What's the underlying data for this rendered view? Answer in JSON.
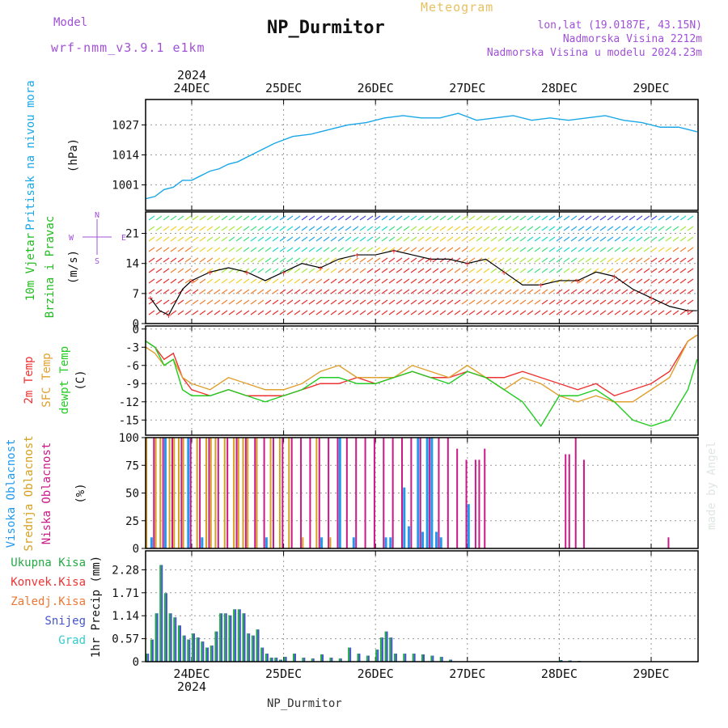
{
  "header": {
    "title": "NP_Durmitor",
    "subtitle": "Meteogram",
    "model_label": "Model",
    "model_name": "wrf-nmm_v3.9.1 e1km",
    "location": "lon,lat (19.0187E, 43.15N)",
    "elevation": "Nadmorska Visina 2212m",
    "model_elevation": "Nadmorska Visina u modelu 2024.23m",
    "footer": "NP_Durmitor",
    "watermark": "made by Angel",
    "year": "2024",
    "dates": [
      "24DEC",
      "25DEC",
      "26DEC",
      "27DEC",
      "28DEC",
      "29DEC"
    ]
  },
  "colors": {
    "pressure": "#1aa7e8",
    "temp2m": "#ee3333",
    "sfc": "#e0a030",
    "dew": "#22cc22",
    "wind_label": "#22bb22",
    "cloud_high": "#2299ee",
    "cloud_mid": "#d6a020",
    "cloud_low": "#cc1888",
    "precip_total": "#22aa44",
    "precip_snow": "#4455cc",
    "precip_conv": "#ee3333",
    "precip_frz": "#ee7733",
    "precip_grad": "#33cccc",
    "model": "#a050d8",
    "subtitle": "#e8c060"
  },
  "chart_data": [
    {
      "type": "line",
      "ylabel": [
        "Pritisak na nivou mora",
        "(hPa)"
      ],
      "yticks": [
        1001,
        1014,
        1027
      ],
      "ylim": [
        990,
        1038
      ],
      "x": [
        -0.5,
        -0.4,
        -0.3,
        -0.2,
        -0.1,
        0,
        0.1,
        0.2,
        0.3,
        0.4,
        0.5,
        0.7,
        0.9,
        1.1,
        1.3,
        1.5,
        1.7,
        1.9,
        2.1,
        2.3,
        2.5,
        2.7,
        2.9,
        3.1,
        3.3,
        3.5,
        3.7,
        3.9,
        4.1,
        4.3,
        4.5,
        4.7,
        4.9,
        5.1,
        5.3,
        5.5
      ],
      "series": [
        {
          "values": [
            995,
            996,
            999,
            1000,
            1003,
            1003,
            1005,
            1007,
            1008,
            1010,
            1011,
            1015,
            1019,
            1022,
            1023,
            1025,
            1027,
            1028,
            1030,
            1031,
            1030,
            1030,
            1032,
            1029,
            1030,
            1031,
            1029,
            1030,
            1029,
            1030,
            1031,
            1029,
            1028,
            1026,
            1026,
            1024
          ]
        }
      ]
    },
    {
      "type": "line",
      "ylabel": [
        "10m Vjetar",
        "Brzina i Pravac",
        "(m/s)"
      ],
      "compass": [
        "N",
        "E",
        "S",
        "W"
      ],
      "yticks": [
        0,
        7,
        14,
        21
      ],
      "ylim": [
        0,
        26
      ],
      "x": [
        -0.45,
        -0.35,
        -0.25,
        -0.1,
        0,
        0.1,
        0.2,
        0.4,
        0.6,
        0.8,
        1,
        1.2,
        1.4,
        1.6,
        1.8,
        2,
        2.2,
        2.4,
        2.6,
        2.8,
        3,
        3.2,
        3.4,
        3.6,
        3.8,
        4,
        4.2,
        4.4,
        4.6,
        4.8,
        5,
        5.2,
        5.4,
        5.5
      ],
      "series": [
        {
          "values": [
            6,
            3,
            2,
            8,
            10,
            11,
            12,
            13,
            12,
            10,
            12,
            14,
            13,
            15,
            16,
            16,
            17,
            16,
            15,
            15,
            14,
            15,
            12,
            9,
            9,
            10,
            10,
            12,
            11,
            8,
            6,
            4,
            3,
            3
          ]
        }
      ]
    },
    {
      "type": "line",
      "ylabel": [
        "2m Temp",
        "SFC Temp",
        "dewpt Temp",
        "(C)"
      ],
      "yticks": [
        0,
        -3,
        -6,
        -9,
        -12,
        -15
      ],
      "ylim": [
        -17.5,
        0.5
      ],
      "x": [
        -0.5,
        -0.4,
        -0.3,
        -0.2,
        -0.1,
        0,
        0.2,
        0.4,
        0.6,
        0.8,
        1,
        1.2,
        1.4,
        1.6,
        1.8,
        2,
        2.2,
        2.4,
        2.6,
        2.8,
        3,
        3.2,
        3.4,
        3.6,
        3.8,
        4,
        4.2,
        4.4,
        4.6,
        4.8,
        5,
        5.2,
        5.4,
        5.5
      ],
      "series": [
        {
          "name": "2m Temp",
          "values": [
            -2,
            -3,
            -5,
            -4,
            -8,
            -10,
            -11,
            -10,
            -11,
            -11,
            -11,
            -10,
            -9,
            -9,
            -8,
            -9,
            -8,
            -7,
            -8,
            -8,
            -7,
            -8,
            -8,
            -7,
            -8,
            -9,
            -10,
            -9,
            -11,
            -10,
            -9,
            -7,
            -2,
            -1
          ]
        },
        {
          "name": "SFC Temp",
          "values": [
            -3,
            -4,
            -6,
            -5,
            -8,
            -9,
            -10,
            -8,
            -9,
            -10,
            -10,
            -9,
            -7,
            -6,
            -8,
            -8,
            -8,
            -6,
            -7,
            -8,
            -6,
            -8,
            -10,
            -8,
            -9,
            -11,
            -12,
            -11,
            -12,
            -12,
            -10,
            -8,
            -2,
            -1
          ]
        },
        {
          "name": "dewpt Temp",
          "values": [
            -2,
            -3,
            -6,
            -5,
            -10,
            -11,
            -11,
            -10,
            -11,
            -12,
            -11,
            -10,
            -8,
            -8,
            -9,
            -9,
            -8,
            -7,
            -8,
            -9,
            -7,
            -8,
            -10,
            -12,
            -16,
            -11,
            -11,
            -10,
            -12,
            -15,
            -16,
            -15,
            -10,
            -5
          ]
        }
      ]
    },
    {
      "type": "bar",
      "ylabel": [
        "Visoka Oblacnost",
        "Srednja Oblacnost",
        "Niska Oblacnost",
        "(%)"
      ],
      "yticks": [
        0,
        25,
        50,
        75,
        100
      ],
      "ylim": [
        0,
        100
      ],
      "series": [
        {
          "name": "Visoka Oblacnost",
          "x": [
            -0.45,
            -0.3,
            -0.05,
            0.1,
            0.8,
            1.4,
            1.6,
            1.75,
            2.1,
            2.15,
            2.3,
            2.35,
            2.45,
            2.5,
            2.55,
            2.6,
            2.65,
            2.7,
            3.0
          ],
          "values": [
            10,
            100,
            100,
            10,
            10,
            10,
            100,
            10,
            10,
            10,
            55,
            20,
            100,
            15,
            100,
            100,
            15,
            10,
            40
          ]
        },
        {
          "name": "Srednja Oblacnost",
          "x": [
            -0.5,
            -0.4,
            -0.35,
            -0.25,
            -0.2,
            -0.15,
            -0.1,
            0.05,
            0.15,
            0.2,
            0.25,
            0.35,
            0.45,
            0.5,
            0.55,
            0.6,
            0.7,
            0.85,
            0.95,
            1.05,
            1.2,
            1.35,
            1.5
          ],
          "values": [
            100,
            100,
            100,
            100,
            100,
            100,
            100,
            100,
            100,
            100,
            100,
            100,
            100,
            100,
            100,
            100,
            100,
            100,
            100,
            100,
            10,
            100,
            10
          ]
        },
        {
          "name": "Niska Oblacnost",
          "x": [
            -0.42,
            -0.32,
            -0.22,
            -0.12,
            -0.02,
            0.08,
            0.18,
            0.28,
            0.38,
            0.48,
            0.58,
            0.68,
            0.78,
            0.88,
            0.98,
            1.08,
            1.18,
            1.28,
            1.38,
            1.48,
            1.58,
            1.68,
            1.78,
            1.88,
            1.98,
            2.08,
            2.18,
            2.28,
            2.38,
            2.48,
            2.58,
            2.68,
            2.78,
            2.88,
            2.98,
            3.08,
            3.12,
            3.18,
            4.06,
            4.1,
            4.17,
            4.26,
            5.18
          ],
          "values": [
            100,
            100,
            100,
            100,
            100,
            100,
            100,
            100,
            100,
            100,
            100,
            100,
            100,
            100,
            100,
            100,
            100,
            100,
            100,
            100,
            100,
            100,
            100,
            100,
            100,
            100,
            100,
            100,
            100,
            100,
            100,
            100,
            100,
            90,
            80,
            80,
            80,
            90,
            85,
            85,
            100,
            80,
            10
          ]
        }
      ]
    },
    {
      "type": "bar",
      "ylabel": [
        "1hr Precip (mm)"
      ],
      "legend": [
        "Ukupna Kisa",
        "Konvek.Kisa",
        "Zaledj.Kisa",
        "Snijeg",
        "Grad"
      ],
      "yticks": [
        0,
        0.57,
        1.14,
        1.71,
        2.28
      ],
      "ytick_labels": [
        "0",
        "0.57",
        "1.14",
        "1.71",
        "2.28"
      ],
      "ylim": [
        0,
        2.75
      ],
      "x": [
        -0.5,
        -0.45,
        -0.4,
        -0.35,
        -0.3,
        -0.25,
        -0.2,
        -0.15,
        -0.1,
        -0.05,
        0,
        0.05,
        0.1,
        0.15,
        0.2,
        0.25,
        0.3,
        0.35,
        0.4,
        0.45,
        0.5,
        0.55,
        0.6,
        0.65,
        0.7,
        0.75,
        0.8,
        0.85,
        0.9,
        0.95,
        1.0,
        1.1,
        1.2,
        1.3,
        1.4,
        1.5,
        1.6,
        1.7,
        1.8,
        1.9,
        2.0,
        2.05,
        2.1,
        2.15,
        2.2,
        2.3,
        2.4,
        2.5,
        2.6,
        2.7,
        2.8,
        4.0,
        4.1,
        4.2
      ],
      "values": [
        0.2,
        0.55,
        1.2,
        2.4,
        1.7,
        1.2,
        1.1,
        0.9,
        0.65,
        0.55,
        0.7,
        0.6,
        0.5,
        0.35,
        0.4,
        0.75,
        1.2,
        1.2,
        1.15,
        1.3,
        1.3,
        1.2,
        0.7,
        0.65,
        0.8,
        0.35,
        0.2,
        0.1,
        0.1,
        0.05,
        0.12,
        0.2,
        0.1,
        0.08,
        0.18,
        0.1,
        0.08,
        0.35,
        0.2,
        0.15,
        0.3,
        0.6,
        0.75,
        0.6,
        0.2,
        0.2,
        0.2,
        0.18,
        0.15,
        0.12,
        0.05,
        0.04,
        0.03,
        0.02
      ]
    }
  ]
}
